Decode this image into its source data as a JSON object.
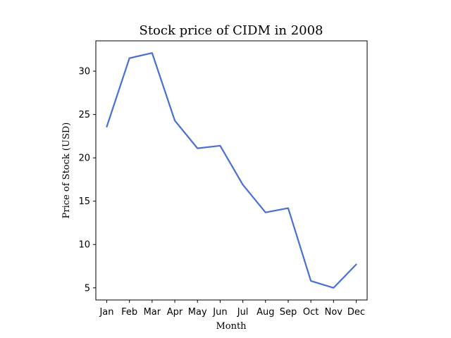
{
  "chart_data": {
    "type": "line",
    "title": "Stock price of CIDM in 2008",
    "xlabel": "Month",
    "ylabel": "Price of Stock (USD)",
    "categories": [
      "Jan",
      "Feb",
      "Mar",
      "Apr",
      "May",
      "Jun",
      "Jul",
      "Aug",
      "Sep",
      "Oct",
      "Nov",
      "Dec"
    ],
    "series": [
      {
        "values": [
          23.6,
          31.5,
          32.1,
          24.3,
          21.1,
          21.4,
          16.9,
          13.7,
          14.2,
          5.8,
          5.0,
          7.7
        ],
        "color": "#4a6fd4"
      }
    ],
    "ylim": [
      3.6,
      33.5
    ],
    "yticks": [
      5,
      10,
      15,
      20,
      25,
      30
    ],
    "grid": false,
    "legend": "none"
  }
}
